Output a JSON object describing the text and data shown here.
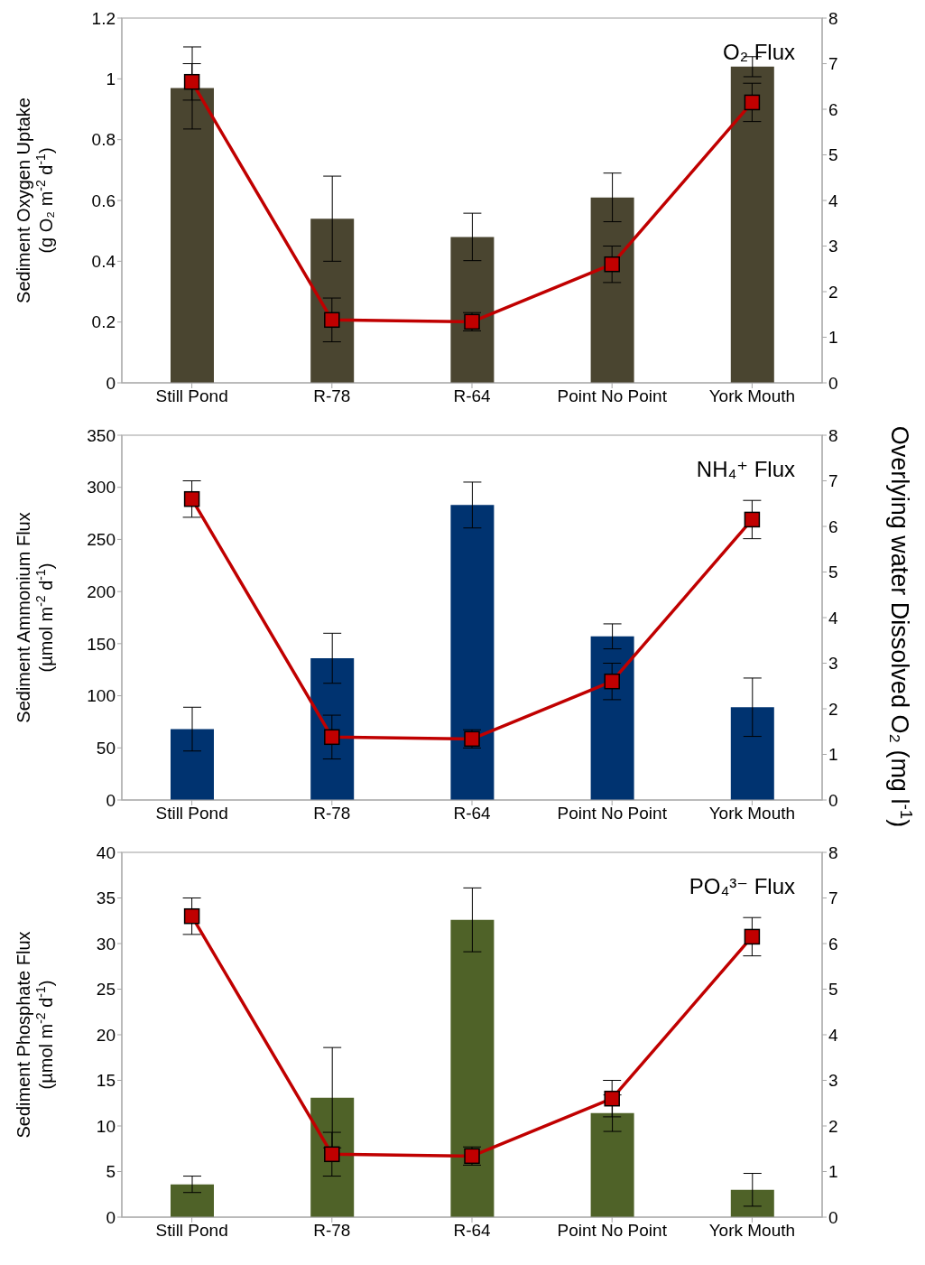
{
  "chart_data": [
    {
      "type": "bar",
      "title": "O₂ Flux",
      "ylabel": "Sediment Oxygen Uptake\n(g O₂ m$^{-2}$ d$^{-1}$)",
      "categories": [
        "Still Pond",
        "R-78",
        "R-64",
        "Point No Point",
        "York Mouth"
      ],
      "ylim": [
        0,
        1.2
      ],
      "yticks": [
        0,
        0.2,
        0.4,
        0.6,
        0.8,
        1,
        1.2
      ],
      "y2lim": [
        0,
        8
      ],
      "y2ticks": [
        0,
        1,
        2,
        3,
        4,
        5,
        6,
        7,
        8
      ],
      "series": [
        {
          "color": "#4a4530",
          "values": [
            0.97,
            0.54,
            0.48,
            0.61,
            1.04
          ],
          "errors": [
            0.135,
            0.14,
            0.078,
            0.08,
            0.033
          ]
        },
        {
          "type": "line",
          "axis": "y2",
          "color": "#c00000",
          "marker": "square",
          "values": [
            6.6,
            1.38,
            1.34,
            2.6,
            6.15
          ],
          "errors": [
            0.4,
            0.48,
            0.2,
            0.4,
            0.42
          ]
        }
      ]
    },
    {
      "type": "bar",
      "title": "NH₄⁺ Flux",
      "ylabel": "Sediment Ammonium Flux\n(µmol m$^{-2}$ d$^{-1}$)",
      "y2label": "Overlying water Dissolved O₂ (mg l$^{-1}$)",
      "categories": [
        "Still Pond",
        "R-78",
        "R-64",
        "Point No Point",
        "York Mouth"
      ],
      "ylim": [
        0,
        350
      ],
      "yticks": [
        0,
        50,
        100,
        150,
        200,
        250,
        300,
        350
      ],
      "y2lim": [
        0,
        8
      ],
      "y2ticks": [
        0,
        1,
        2,
        3,
        4,
        5,
        6,
        7,
        8
      ],
      "series": [
        {
          "color": "#003370",
          "values": [
            68,
            136,
            283,
            157,
            89
          ],
          "errors": [
            21,
            24,
            22,
            12,
            28
          ]
        },
        {
          "type": "line",
          "axis": "y2",
          "color": "#c00000",
          "marker": "square",
          "values": [
            6.6,
            1.38,
            1.34,
            2.6,
            6.15
          ],
          "errors": [
            0.4,
            0.48,
            0.2,
            0.4,
            0.42
          ]
        }
      ]
    },
    {
      "type": "bar",
      "title": "PO₄³⁻ Flux",
      "ylabel": "Sediment Phosphate Flux\n(µmol m$^{-2}$ d$^{-1}$)",
      "categories": [
        "Still Pond",
        "R-78",
        "R-64",
        "Point No Point",
        "York Mouth"
      ],
      "ylim": [
        0,
        40
      ],
      "yticks": [
        0,
        5,
        10,
        15,
        20,
        25,
        30,
        35,
        40
      ],
      "y2lim": [
        0,
        8
      ],
      "y2ticks": [
        0,
        1,
        2,
        3,
        4,
        5,
        6,
        7,
        8
      ],
      "series": [
        {
          "color": "#4f6228",
          "values": [
            3.6,
            13.1,
            32.6,
            11.4,
            3.0
          ],
          "errors": [
            0.9,
            5.5,
            3.5,
            2,
            1.8
          ]
        },
        {
          "type": "line",
          "axis": "y2",
          "color": "#c00000",
          "marker": "square",
          "values": [
            6.6,
            1.38,
            1.34,
            2.6,
            6.15
          ],
          "errors": [
            0.4,
            0.48,
            0.2,
            0.4,
            0.42
          ]
        }
      ]
    }
  ]
}
